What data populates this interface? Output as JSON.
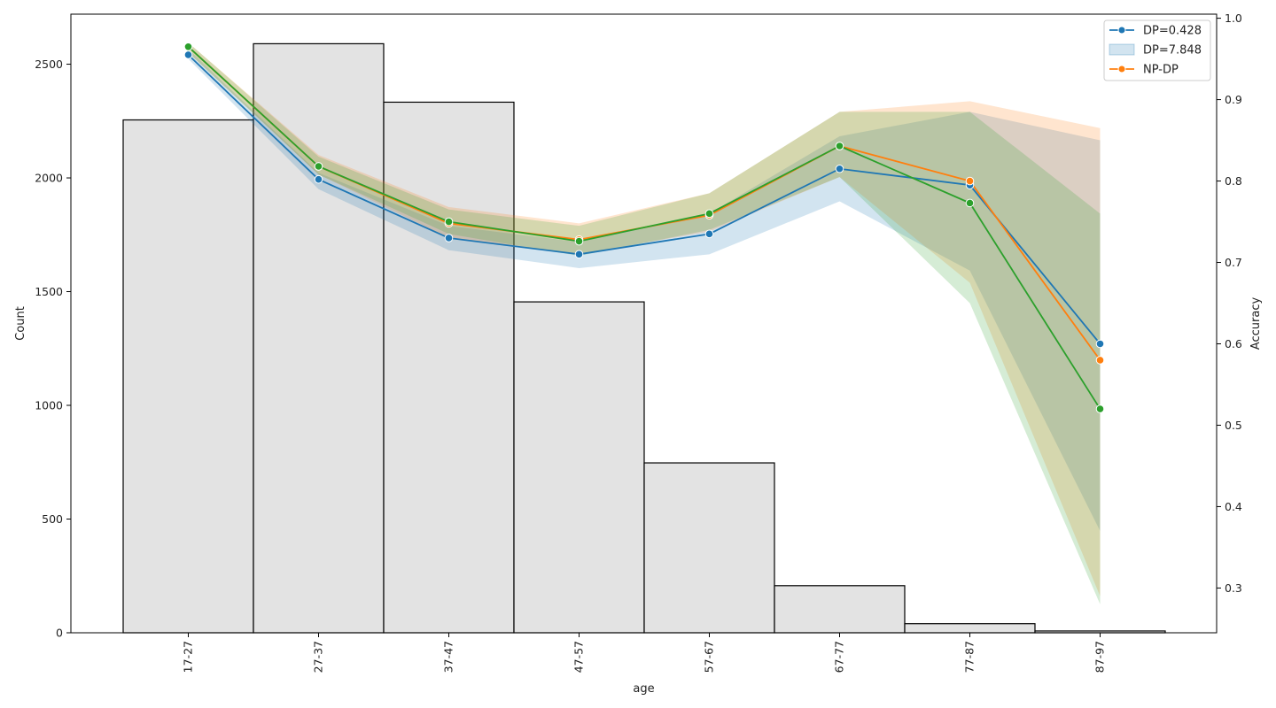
{
  "chart_data": {
    "type": "bar",
    "categories": [
      "17-27",
      "27-37",
      "37-47",
      "47-57",
      "57-67",
      "67-77",
      "77-87",
      "87-97"
    ],
    "xlabel": "age",
    "ylabel": "Count",
    "ylabel_right": "Accuracy",
    "ylim": [
      0,
      2720
    ],
    "yticks": [
      0,
      500,
      1000,
      1500,
      2000,
      2500
    ],
    "ylim_right": [
      0.245,
      1.005
    ],
    "yticks_right": [
      0.3,
      0.4,
      0.5,
      0.6,
      0.7,
      0.8,
      0.9,
      1.0
    ],
    "histogram": {
      "values": [
        2255,
        2590,
        2333,
        1455,
        747,
        207,
        40,
        8
      ],
      "color": "#e3e3e3",
      "edge": "#000000"
    },
    "series": [
      {
        "name": "DP=0.428",
        "color": "#1f77b4",
        "values": [
          0.955,
          0.802,
          0.73,
          0.71,
          0.735,
          0.815,
          0.795,
          0.6
        ],
        "band_upper": [
          0.962,
          0.81,
          0.745,
          0.725,
          0.76,
          0.855,
          0.885,
          0.85
        ],
        "band_lower": [
          0.95,
          0.79,
          0.715,
          0.693,
          0.71,
          0.775,
          0.69,
          0.37
        ]
      },
      {
        "name": "DP=7.848",
        "color": "#ff7f0e",
        "values": [
          0.965,
          0.818,
          0.748,
          0.728,
          0.758,
          0.843,
          0.8,
          0.58
        ],
        "band_upper": [
          0.97,
          0.832,
          0.768,
          0.748,
          0.785,
          0.885,
          0.898,
          0.865
        ],
        "band_lower": [
          0.958,
          0.808,
          0.73,
          0.71,
          0.738,
          0.805,
          0.675,
          0.29
        ]
      },
      {
        "name": "NP-DP",
        "color": "#2ca02c",
        "values": [
          0.965,
          0.818,
          0.75,
          0.726,
          0.76,
          0.843,
          0.773,
          0.52
        ],
        "band_upper": [
          0.97,
          0.83,
          0.765,
          0.745,
          0.785,
          0.885,
          0.885,
          0.76
        ],
        "band_lower": [
          0.958,
          0.808,
          0.735,
          0.708,
          0.74,
          0.805,
          0.65,
          0.28
        ]
      }
    ],
    "legend": {
      "position": "top-right",
      "entries": [
        {
          "label": "DP=0.428",
          "kind": "line",
          "color": "#1f77b4"
        },
        {
          "label": "DP=7.848",
          "kind": "band",
          "color": "#1f77b4"
        },
        {
          "label": "NP-DP",
          "kind": "line",
          "color": "#ff7f0e"
        }
      ]
    },
    "grid": false
  }
}
